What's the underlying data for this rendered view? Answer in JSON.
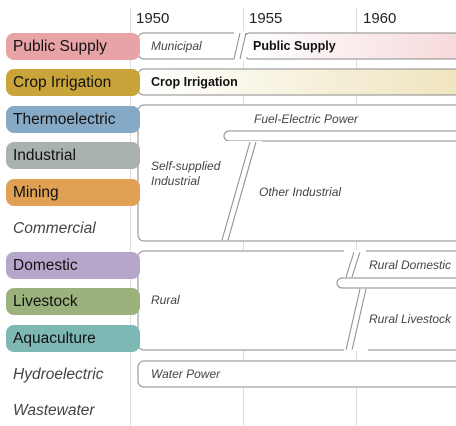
{
  "timeline": {
    "years": [
      "1950",
      "1955",
      "1960"
    ]
  },
  "categories": [
    {
      "label": "Public Supply",
      "color": "#e8a3a6",
      "style": "pill"
    },
    {
      "label": "Crop Irrigation",
      "color": "#c9a43b",
      "style": "pill"
    },
    {
      "label": "Thermoelectric",
      "color": "#86a9c5",
      "style": "pill"
    },
    {
      "label": "Industrial",
      "color": "#a9b2ae",
      "style": "pill"
    },
    {
      "label": "Mining",
      "color": "#e0a154",
      "style": "pill"
    },
    {
      "label": "Commercial",
      "style": "plain"
    },
    {
      "label": "Domestic",
      "color": "#b7a6cc",
      "style": "pill"
    },
    {
      "label": "Livestock",
      "color": "#9bb27d",
      "style": "pill"
    },
    {
      "label": "Aquaculture",
      "color": "#7db8b5",
      "style": "pill"
    },
    {
      "label": "Hydroelectric",
      "style": "plain"
    },
    {
      "label": "Wastewater",
      "style": "plain"
    }
  ],
  "boxes": {
    "municipal": "Municipal",
    "public_supply": "Public Supply",
    "crop_irrigation": "Crop Irrigation",
    "fuel_electric_power": "Fuel-Electric Power",
    "self_supplied_industrial_line1": "Self-supplied",
    "self_supplied_industrial_line2": "Industrial",
    "other_industrial": "Other Industrial",
    "rural_domestic": "Rural Domestic",
    "rural": "Rural",
    "rural_livestock": "Rural Livestock",
    "water_power": "Water Power"
  }
}
